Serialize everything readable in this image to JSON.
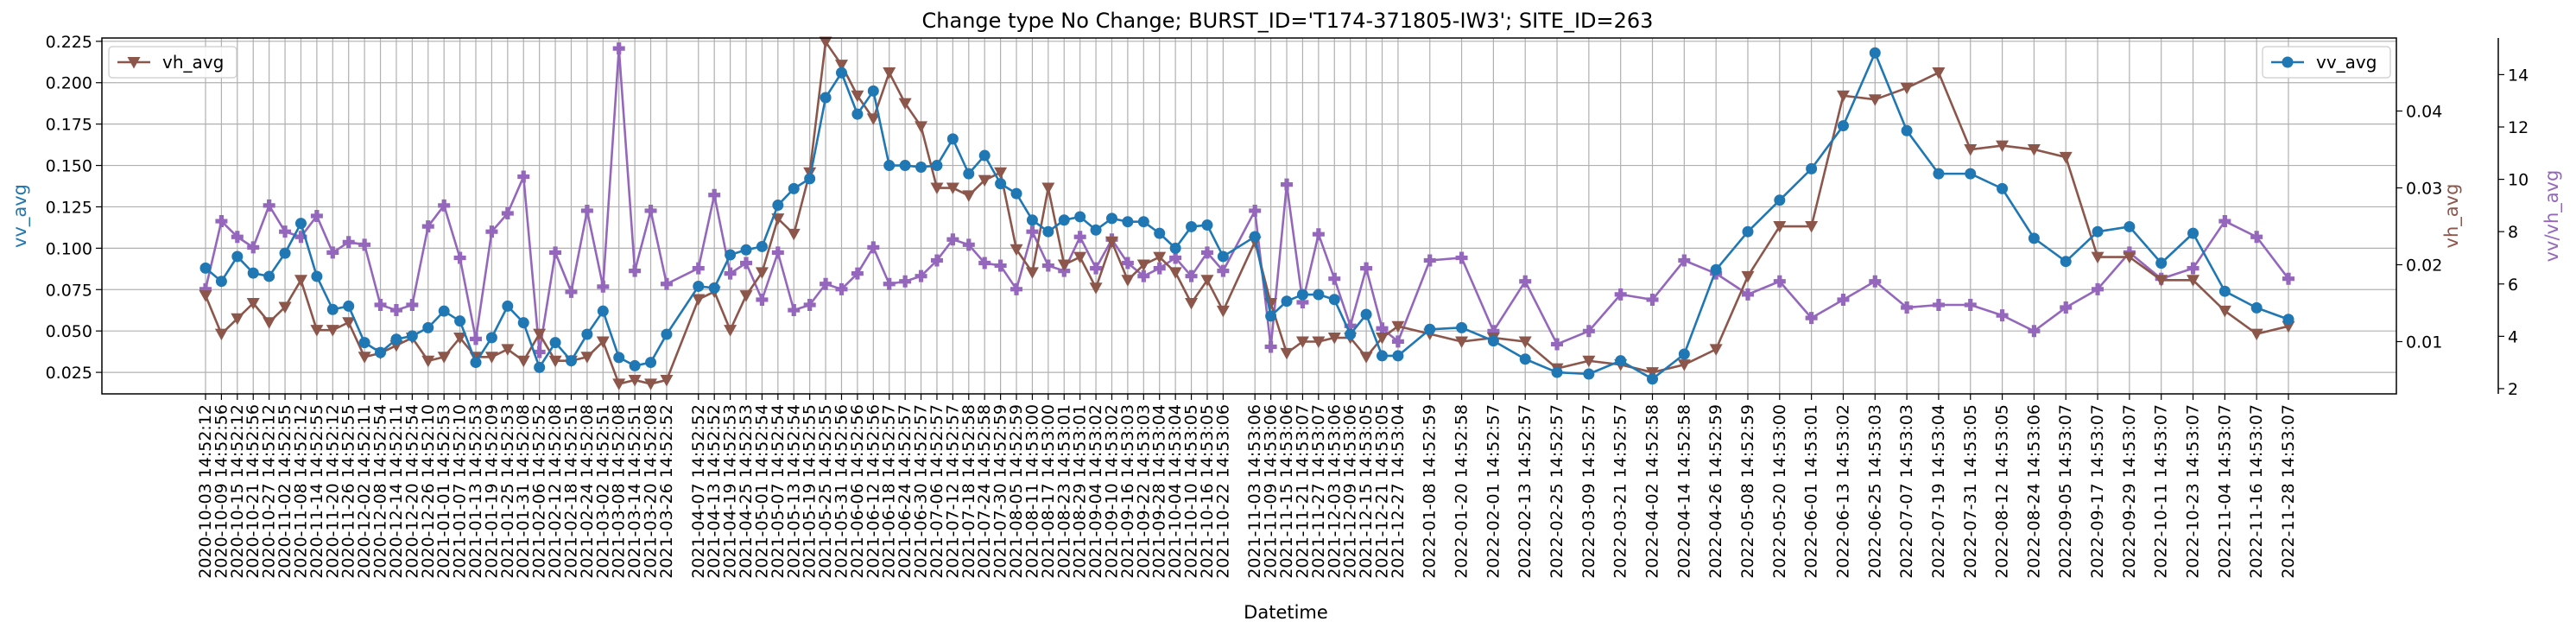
{
  "chart_data": {
    "type": "line",
    "title": "Change type No Change; BURST_ID='T174-371805-IW3'; SITE_ID=263",
    "xlabel": "Datetime",
    "x": [
      "2020-10-03 14:52:12",
      "2020-10-09 14:52:56",
      "2020-10-15 14:52:12",
      "2020-10-21 14:52:56",
      "2020-10-27 14:52:12",
      "2020-11-02 14:52:55",
      "2020-11-08 14:52:12",
      "2020-11-14 14:52:55",
      "2020-11-20 14:52:12",
      "2020-11-26 14:52:55",
      "2020-12-02 14:52:11",
      "2020-12-08 14:52:54",
      "2020-12-14 14:52:11",
      "2020-12-20 14:52:54",
      "2020-12-26 14:52:10",
      "2021-01-01 14:52:53",
      "2021-01-07 14:52:10",
      "2021-01-13 14:52:53",
      "2021-01-19 14:52:09",
      "2021-01-25 14:52:53",
      "2021-01-31 14:52:08",
      "2021-02-06 14:52:52",
      "2021-02-12 14:52:08",
      "2021-02-18 14:52:51",
      "2021-02-24 14:52:08",
      "2021-03-02 14:52:51",
      "2021-03-08 14:52:08",
      "2021-03-14 14:52:51",
      "2021-03-20 14:52:08",
      "2021-03-26 14:52:52",
      "2021-04-07 14:52:52",
      "2021-04-13 14:52:52",
      "2021-04-19 14:52:53",
      "2021-04-25 14:52:53",
      "2021-05-01 14:52:54",
      "2021-05-07 14:52:54",
      "2021-05-13 14:52:54",
      "2021-05-19 14:52:55",
      "2021-05-25 14:52:55",
      "2021-05-31 14:52:56",
      "2021-06-06 14:52:56",
      "2021-06-12 14:52:56",
      "2021-06-18 14:52:57",
      "2021-06-24 14:52:57",
      "2021-06-30 14:52:57",
      "2021-07-06 14:52:57",
      "2021-07-12 14:52:57",
      "2021-07-18 14:52:58",
      "2021-07-24 14:52:58",
      "2021-07-30 14:52:59",
      "2021-08-05 14:52:59",
      "2021-08-11 14:53:00",
      "2021-08-17 14:53:00",
      "2021-08-23 14:53:01",
      "2021-08-29 14:53:01",
      "2021-09-04 14:53:02",
      "2021-09-10 14:53:02",
      "2021-09-16 14:53:03",
      "2021-09-22 14:53:03",
      "2021-09-28 14:53:04",
      "2021-10-04 14:53:04",
      "2021-10-10 14:53:05",
      "2021-10-16 14:53:05",
      "2021-10-22 14:53:06",
      "2021-11-03 14:53:06",
      "2021-11-09 14:53:06",
      "2021-11-15 14:53:06",
      "2021-11-21 14:53:07",
      "2021-11-27 14:53:07",
      "2021-12-03 14:53:06",
      "2021-12-09 14:53:06",
      "2021-12-15 14:53:05",
      "2021-12-21 14:53:05",
      "2021-12-27 14:53:04",
      "2022-01-08 14:52:59",
      "2022-01-20 14:52:58",
      "2022-02-01 14:52:57",
      "2022-02-13 14:52:57",
      "2022-02-25 14:52:57",
      "2022-03-09 14:52:57",
      "2022-03-21 14:52:57",
      "2022-04-02 14:52:58",
      "2022-04-14 14:52:58",
      "2022-04-26 14:52:59",
      "2022-05-08 14:52:59",
      "2022-05-20 14:53:00",
      "2022-06-01 14:53:01",
      "2022-06-13 14:53:02",
      "2022-06-25 14:53:03",
      "2022-07-07 14:53:03",
      "2022-07-19 14:53:04",
      "2022-07-31 14:53:05",
      "2022-08-12 14:53:05",
      "2022-08-24 14:53:06",
      "2022-09-05 14:53:07",
      "2022-09-17 14:53:07",
      "2022-09-29 14:53:07",
      "2022-10-11 14:53:07",
      "2022-10-23 14:53:07",
      "2022-11-04 14:53:07",
      "2022-11-16 14:53:07",
      "2022-11-28 14:53:07"
    ],
    "xtick_labels": [
      "2020-10-03 14:52:12",
      "2020-10-09 14:52:56",
      "2020-10-15 14:52:12",
      "2020-10-21 14:52:56",
      "2020-10-27 14:52:12",
      "2020-11-02 14:52:55",
      "2020-11-08 14:52:12",
      "2020-11-14 14:52:55",
      "2020-11-20 14:52:12",
      "2020-11-26 14:52:55",
      "2020-12-02 14:52:11",
      "2020-12-08 14:52:54",
      "2020-12-14 14:52:11",
      "2020-12-20 14:52:54",
      "2020-12-26 14:52:10",
      "2021-01-01 14:52:53",
      "2021-01-07 14:52:10",
      "2021-01-13 14:52:53",
      "2021-01-19 14:52:09",
      "2021-01-25 14:52:53",
      "2021-01-31 14:52:08",
      "2021-02-06 14:52:52",
      "2021-02-12 14:52:08",
      "2021-02-18 14:52:51",
      "2021-02-24 14:52:08",
      "2021-03-02 14:52:51",
      "2021-03-08 14:52:08",
      "2021-03-14 14:52:51",
      "2021-03-20 14:52:08",
      "2021-03-26 14:52:52",
      "2021-04-07 14:52:52",
      "2021-04-13 14:52:52",
      "2021-04-19 14:52:53",
      "2021-04-25 14:52:53",
      "2021-05-01 14:52:54",
      "2021-05-07 14:52:54",
      "2021-05-13 14:52:54",
      "2021-05-19 14:52:55",
      "2021-05-25 14:52:55",
      "2021-05-31 14:52:56",
      "2021-06-06 14:52:56",
      "2021-06-12 14:52:56",
      "2021-06-18 14:52:57",
      "2021-06-24 14:52:57",
      "2021-06-30 14:52:57",
      "2021-07-06 14:52:57",
      "2021-07-12 14:52:57",
      "2021-07-18 14:52:58",
      "2021-07-24 14:52:58",
      "2021-07-30 14:52:59",
      "2021-08-05 14:52:59",
      "2021-08-11 14:53:00",
      "2021-08-17 14:53:00",
      "2021-08-23 14:53:01",
      "2021-08-29 14:53:01",
      "2021-09-04 14:53:02",
      "2021-09-10 14:53:02",
      "2021-09-16 14:53:03",
      "2021-09-22 14:53:03",
      "2021-09-28 14:53:04",
      "2021-10-04 14:53:04",
      "2021-10-10 14:53:05",
      "2021-10-16 14:53:05",
      "2021-10-22 14:53:06",
      "2021-11-03 14:53:06",
      "2021-11-09 14:53:06",
      "2021-11-15 14:53:06",
      "2021-11-21 14:53:07",
      "2021-11-27 14:53:07",
      "2021-12-03 14:53:06",
      "2021-12-09 14:53:06",
      "2021-12-15 14:53:05",
      "2021-12-21 14:53:05",
      "2021-12-27 14:53:04",
      "2022-01-08 14:52:59",
      "2022-01-20 14:52:58",
      "2022-02-01 14:52:57",
      "2022-02-13 14:52:57",
      "2022-02-25 14:52:57",
      "2022-03-09 14:52:57",
      "2022-03-21 14:52:57",
      "2022-04-02 14:52:58",
      "2022-04-14 14:52:58",
      "2022-04-26 14:52:59",
      "2022-05-08 14:52:59",
      "2022-05-20 14:53:00",
      "2022-06-01 14:53:01",
      "2022-06-13 14:53:02",
      "2022-06-25 14:53:03",
      "2022-07-07 14:53:03",
      "2022-07-19 14:53:04",
      "2022-07-31 14:53:05",
      "2022-08-12 14:53:05",
      "2022-08-24 14:53:06",
      "2022-09-05 14:53:07",
      "2022-09-17 14:53:07",
      "2022-09-29 14:53:07",
      "2022-10-11 14:53:07",
      "2022-10-23 14:53:07",
      "2022-11-04 14:53:07",
      "2022-11-16 14:53:07",
      "2022-11-28 14:53:07"
    ],
    "axes": {
      "left": {
        "label": "vv_avg",
        "ylim": [
          0.012,
          0.227
        ],
        "ticks": [
          "0.025",
          "0.050",
          "0.075",
          "0.100",
          "0.125",
          "0.150",
          "0.175",
          "0.200",
          "0.225"
        ],
        "color": "#1f77b4"
      },
      "right1": {
        "label": "vh_avg",
        "ylim": [
          0.0032,
          0.0495
        ],
        "ticks": [
          "0.01",
          "0.02",
          "0.03",
          "0.04"
        ],
        "color": "#8c564b"
      },
      "right2": {
        "label": "vv/vh_avg",
        "ylim": [
          1.8,
          15.4
        ],
        "ticks": [
          "2",
          "4",
          "6",
          "8",
          "10",
          "12",
          "14"
        ],
        "color": "#9467bd"
      }
    },
    "grid": true,
    "legends": [
      {
        "series": "vh_avg",
        "placement": "top-left"
      },
      {
        "series": "vv_avg",
        "placement": "top-right"
      }
    ],
    "series": [
      {
        "name": "vv_avg",
        "axis": "left",
        "marker": "circle",
        "color": "#1f77b4",
        "values": [
          0.088,
          0.08,
          0.095,
          0.085,
          0.083,
          0.097,
          0.115,
          0.083,
          0.063,
          0.065,
          0.043,
          0.037,
          0.045,
          0.047,
          0.052,
          0.062,
          0.056,
          0.031,
          0.046,
          0.065,
          0.055,
          0.028,
          0.043,
          0.032,
          0.048,
          0.062,
          0.034,
          0.029,
          0.031,
          0.048,
          0.077,
          0.076,
          0.096,
          0.099,
          0.101,
          0.126,
          0.136,
          0.142,
          0.191,
          0.206,
          0.181,
          0.195,
          0.15,
          0.15,
          0.149,
          0.15,
          0.166,
          0.145,
          0.156,
          0.139,
          0.133,
          0.117,
          0.11,
          0.117,
          0.119,
          0.111,
          0.118,
          0.116,
          0.116,
          0.109,
          0.1,
          0.113,
          0.114,
          0.095,
          0.107,
          0.059,
          0.068,
          0.072,
          0.072,
          0.069,
          0.048,
          0.06,
          0.035,
          0.035,
          0.051,
          0.052,
          0.044,
          0.033,
          0.025,
          0.024,
          0.032,
          0.021,
          0.036,
          0.087,
          0.11,
          0.129,
          0.148,
          0.174,
          0.218,
          0.171,
          0.145,
          0.145,
          0.136,
          0.106,
          0.092,
          0.11,
          0.113,
          0.091,
          0.109,
          0.074,
          0.064,
          0.057
        ]
      },
      {
        "name": "vh_avg",
        "axis": "right1",
        "marker": "triangle-down",
        "color": "#8c564b",
        "values": [
          0.016,
          0.011,
          0.013,
          0.015,
          0.0125,
          0.0145,
          0.018,
          0.0115,
          0.0115,
          0.0125,
          0.008,
          0.0085,
          0.0095,
          0.0105,
          0.0075,
          0.008,
          0.0105,
          0.008,
          0.008,
          0.009,
          0.0075,
          0.011,
          0.0075,
          0.0075,
          0.008,
          0.01,
          0.0045,
          0.005,
          0.0045,
          0.005,
          0.0155,
          0.0165,
          0.0115,
          0.016,
          0.019,
          0.026,
          0.024,
          0.032,
          0.049,
          0.046,
          0.042,
          0.039,
          0.045,
          0.041,
          0.038,
          0.03,
          0.03,
          0.029,
          0.031,
          0.032,
          0.022,
          0.019,
          0.03,
          0.02,
          0.021,
          0.017,
          0.023,
          0.018,
          0.02,
          0.021,
          0.019,
          0.015,
          0.018,
          0.014,
          0.023,
          0.015,
          0.0085,
          0.01,
          0.01,
          0.0105,
          0.0105,
          0.008,
          0.0105,
          0.012,
          0.011,
          0.01,
          0.0105,
          0.01,
          0.0065,
          0.0075,
          0.007,
          0.006,
          0.007,
          0.009,
          0.0185,
          0.025,
          0.025,
          0.042,
          0.0415,
          0.043,
          0.045,
          0.035,
          0.0355,
          0.035,
          0.034,
          0.021,
          0.021,
          0.018,
          0.018,
          0.014,
          0.011,
          0.012
        ]
      },
      {
        "name": "vv/vh_avg",
        "axis": "right2",
        "marker": "plus",
        "color": "#9467bd",
        "values": [
          5.8,
          8.4,
          7.8,
          7.4,
          9.0,
          8.0,
          7.8,
          8.6,
          7.2,
          7.6,
          7.5,
          5.2,
          5.0,
          5.2,
          8.2,
          9.0,
          7.0,
          3.9,
          8.0,
          8.7,
          10.1,
          3.4,
          7.2,
          5.7,
          8.8,
          5.9,
          15.0,
          6.5,
          8.8,
          6.0,
          6.6,
          9.4,
          6.4,
          6.8,
          5.4,
          7.2,
          5.0,
          5.2,
          6.0,
          5.8,
          6.4,
          7.4,
          6.0,
          6.1,
          6.3,
          6.9,
          7.7,
          7.5,
          6.8,
          6.7,
          5.8,
          8.0,
          6.7,
          6.5,
          7.8,
          6.6,
          7.7,
          6.8,
          6.3,
          6.6,
          7.0,
          6.3,
          7.2,
          6.5,
          8.8,
          3.6,
          9.8,
          5.3,
          7.9,
          6.2,
          4.4,
          6.6,
          4.3,
          3.8,
          6.9,
          7.0,
          4.2,
          6.1,
          3.7,
          4.2,
          5.6,
          5.4,
          6.9,
          6.4,
          5.6,
          6.1,
          4.7,
          5.4,
          6.1,
          5.1,
          5.2,
          5.2,
          4.8,
          4.2,
          5.1,
          5.8,
          7.2,
          6.2,
          6.6,
          8.4,
          7.8,
          6.2
        ]
      }
    ]
  }
}
